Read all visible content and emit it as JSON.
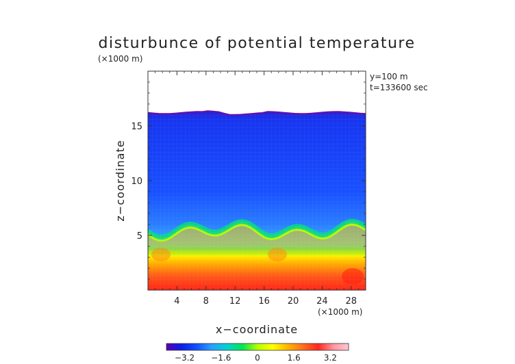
{
  "chart_data": {
    "type": "heatmap",
    "title": "disturbunce of potential temperature",
    "y_unit": "(×1000 m)",
    "x_unit": "(×1000 m)",
    "xlabel": "x−coordinate",
    "ylabel": "z−coordinate",
    "info": [
      "y=100 m",
      "t=133600 sec"
    ],
    "x_range": [
      0,
      30
    ],
    "y_range": [
      0,
      20
    ],
    "x_ticks": [
      4,
      8,
      12,
      16,
      20,
      24,
      28
    ],
    "y_ticks": [
      5,
      10,
      15
    ],
    "x_tick_labels": [
      "4",
      "8",
      "12",
      "16",
      "20",
      "24",
      "28"
    ],
    "y_tick_labels": [
      "5",
      "10",
      "15"
    ],
    "field_top_z": 16.2,
    "transition_z": 5.2,
    "colorbar": {
      "range": [
        -4.0,
        4.0
      ],
      "ticks": [
        -3.2,
        -1.6,
        0,
        1.6,
        3.2
      ],
      "tick_labels": [
        "−3.2",
        "−1.6",
        "0",
        "1.6",
        "3.2"
      ],
      "colors": [
        "#5a00b4",
        "#0a1ee6",
        "#1450ff",
        "#28a0ff",
        "#00d2d2",
        "#00e650",
        "#b4ff00",
        "#ffff00",
        "#ffb400",
        "#ff6e1e",
        "#ff281e",
        "#ff96a0",
        "#ffc8d2"
      ]
    }
  }
}
